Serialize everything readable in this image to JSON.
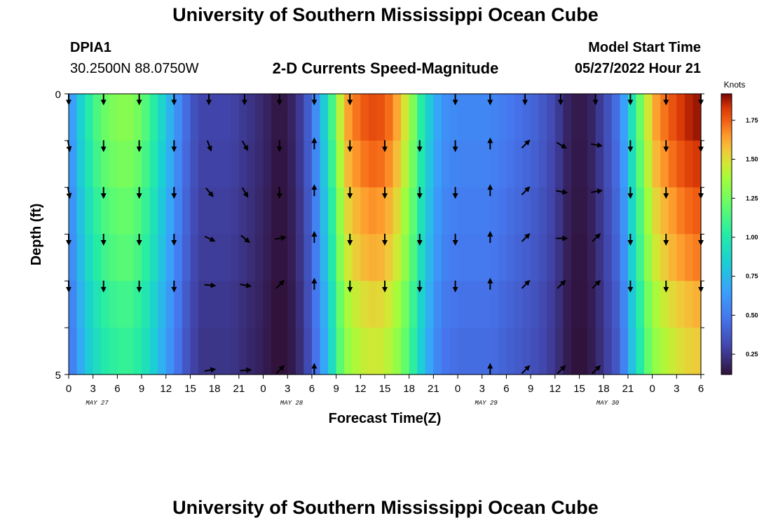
{
  "header": {
    "title": "University of Southern Mississippi Ocean Cube",
    "station_id": "DPIA1",
    "station_coords": "30.2500N  88.0750W",
    "chart_title": "2-D Currents Speed-Magnitude",
    "model_start_label": "Model Start Time",
    "model_start_value": "05/27/2022 Hour 21"
  },
  "footer": {
    "title": "University of Southern Mississippi Ocean Cube"
  },
  "chart_data": {
    "type": "heatmap",
    "title": "2-D Currents Speed-Magnitude",
    "xlabel": "Forecast Time(Z)",
    "ylabel": "Depth (ft)",
    "colorbar_label": "Knots",
    "x_tick_labels": [
      "0",
      "3",
      "6",
      "9",
      "12",
      "15",
      "18",
      "21",
      "0",
      "3",
      "6",
      "9",
      "12",
      "15",
      "18",
      "21",
      "0",
      "3",
      "6",
      "9",
      "12",
      "15",
      "18",
      "21",
      "0",
      "3",
      "6"
    ],
    "date_labels": [
      {
        "label": "MAY 27",
        "x_hours": 3.5
      },
      {
        "label": "MAY 28",
        "x_hours": 27.5
      },
      {
        "label": "MAY 29",
        "x_hours": 51.5
      },
      {
        "label": "MAY 30",
        "x_hours": 66.5
      }
    ],
    "x_range_hours": [
      0,
      78
    ],
    "y_range_ft": [
      0,
      5
    ],
    "y_tick_labels": [
      "0",
      "5"
    ],
    "depth_rows_ft": [
      0,
      1,
      2,
      3,
      4,
      5
    ],
    "colorbar_range": [
      0.12,
      1.92
    ],
    "colorbar_ticks": [
      "0.25",
      "0.50",
      "0.75",
      "1.00",
      "1.25",
      "1.50",
      "1.75"
    ],
    "colorbar_tick_values": [
      0.25,
      0.5,
      0.75,
      1.0,
      1.25,
      1.5,
      1.75
    ],
    "speed_profile_hours": [
      0,
      2,
      4,
      6,
      8,
      10,
      12,
      14,
      16,
      18,
      20,
      22,
      24,
      26,
      28,
      30,
      32,
      34,
      36,
      38,
      40,
      42,
      44,
      46,
      48,
      50,
      52,
      54,
      56,
      58,
      60,
      62,
      64,
      66,
      68,
      70,
      72,
      74,
      76,
      78
    ],
    "speed_profile_knots": [
      0.55,
      0.95,
      1.2,
      1.3,
      1.3,
      1.1,
      0.8,
      0.5,
      0.3,
      0.3,
      0.3,
      0.25,
      0.2,
      0.12,
      0.2,
      0.45,
      0.95,
      1.6,
      1.75,
      1.8,
      1.7,
      1.4,
      0.9,
      0.6,
      0.55,
      0.55,
      0.55,
      0.5,
      0.45,
      0.4,
      0.3,
      0.15,
      0.15,
      0.3,
      0.5,
      1.1,
      1.6,
      1.75,
      1.85,
      1.9
    ],
    "depth_speed_factors": [
      1.0,
      0.97,
      0.93,
      0.9,
      0.85,
      0.82
    ],
    "arrow_times_hours": [
      0,
      4.3,
      8.7,
      13,
      17.3,
      21.7,
      26,
      30.3,
      34.7,
      39,
      43.3,
      47.7,
      52,
      56.3,
      60.7,
      65,
      69.3,
      73.7,
      78
    ],
    "arrow_directions_deg": [
      [
        180,
        180,
        180,
        180,
        180,
        180,
        180,
        180,
        180,
        null,
        null,
        180,
        180,
        180,
        180,
        180,
        180,
        180,
        180
      ],
      [
        170,
        180,
        180,
        180,
        160,
        150,
        180,
        0,
        180,
        180,
        180,
        180,
        0,
        45,
        120,
        100,
        180,
        180,
        180
      ],
      [
        170,
        180,
        180,
        180,
        140,
        150,
        180,
        0,
        180,
        180,
        180,
        180,
        0,
        45,
        100,
        80,
        180,
        180,
        180
      ],
      [
        180,
        180,
        180,
        180,
        115,
        130,
        80,
        0,
        180,
        180,
        180,
        180,
        0,
        45,
        90,
        45,
        180,
        180,
        180
      ],
      [
        180,
        180,
        180,
        180,
        95,
        100,
        45,
        0,
        180,
        180,
        180,
        180,
        0,
        45,
        45,
        45,
        180,
        180,
        180
      ],
      [
        null,
        null,
        null,
        null,
        80,
        85,
        45,
        0,
        null,
        null,
        null,
        null,
        0,
        45,
        45,
        45,
        null,
        null,
        null
      ]
    ]
  }
}
